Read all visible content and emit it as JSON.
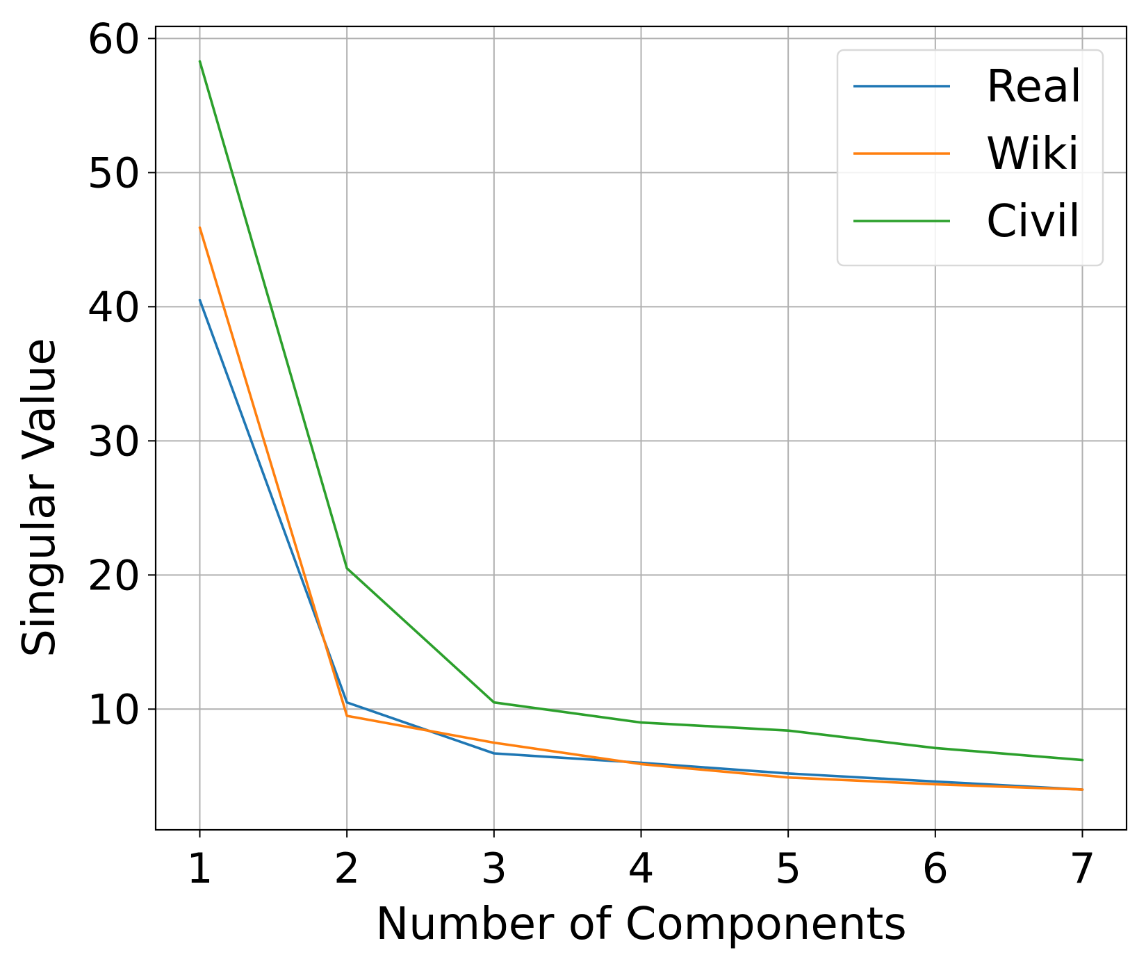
{
  "chart_data": {
    "type": "line",
    "title": "",
    "xlabel": "Number of Components",
    "ylabel": "Singular Value",
    "x": [
      1,
      2,
      3,
      4,
      5,
      6,
      7
    ],
    "xticks": [
      "1",
      "2",
      "3",
      "4",
      "5",
      "6",
      "7"
    ],
    "xlim": [
      0.7,
      7.3
    ],
    "yticks": [
      "10",
      "20",
      "30",
      "40",
      "50",
      "60"
    ],
    "ylim": [
      1,
      60.9
    ],
    "grid": true,
    "legend_position": "top-right",
    "series": [
      {
        "name": "Real",
        "color": "#1f77b4",
        "values": [
          40.5,
          10.5,
          6.7,
          6.0,
          5.2,
          4.6,
          4.0
        ]
      },
      {
        "name": "Wiki",
        "color": "#ff7f0e",
        "values": [
          45.9,
          9.5,
          7.5,
          5.9,
          4.9,
          4.4,
          4.0
        ]
      },
      {
        "name": "Civil",
        "color": "#2ca02c",
        "values": [
          58.3,
          20.5,
          10.5,
          9.0,
          8.4,
          7.1,
          6.2
        ]
      }
    ]
  }
}
